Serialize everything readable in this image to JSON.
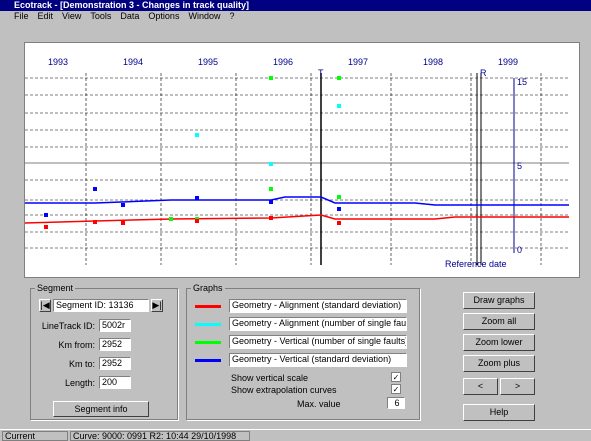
{
  "window": {
    "title": "Ecotrack - [Demonstration 3 - Changes in track quality]"
  },
  "menu": [
    "File",
    "Edit",
    "View",
    "Tools",
    "Data",
    "Options",
    "Window",
    "?"
  ],
  "plot": {
    "years": [
      "1993",
      "1994",
      "1995",
      "1996",
      "1997",
      "1998",
      "1999"
    ],
    "markers": [
      "T",
      "R"
    ],
    "right_scale": [
      "15",
      "5",
      "0"
    ],
    "reference_label": "Reference date"
  },
  "segment": {
    "group": "Segment",
    "segment_id": "Segment ID: 13136",
    "fields": [
      {
        "label": "LineTrack ID:",
        "value": "5002r"
      },
      {
        "label": "Km from:",
        "value": "2952"
      },
      {
        "label": "Km to:",
        "value": "2952"
      },
      {
        "label": "Length:",
        "value": "200"
      }
    ],
    "button": "Segment info"
  },
  "graphs": {
    "group": "Graphs",
    "items": [
      "Geometry - Alignment (standard deviation)",
      "Geometry - Alignment (number of single faults)",
      "Geometry - Vertical (number of single faults)",
      "Geometry - Vertical (standard deviation)"
    ],
    "checks": [
      "Show vertical scale",
      "Show extrapolation curves"
    ],
    "max_label": "Max. value",
    "max_value": "6"
  },
  "buttons": [
    "Draw graphs",
    "Zoom all",
    "Zoom lower",
    "Zoom plus",
    "<",
    ">",
    "Help"
  ],
  "status": [
    "Current selection",
    "Curve: 9000: 0991 R2: 10:44 29/10/1998"
  ]
}
